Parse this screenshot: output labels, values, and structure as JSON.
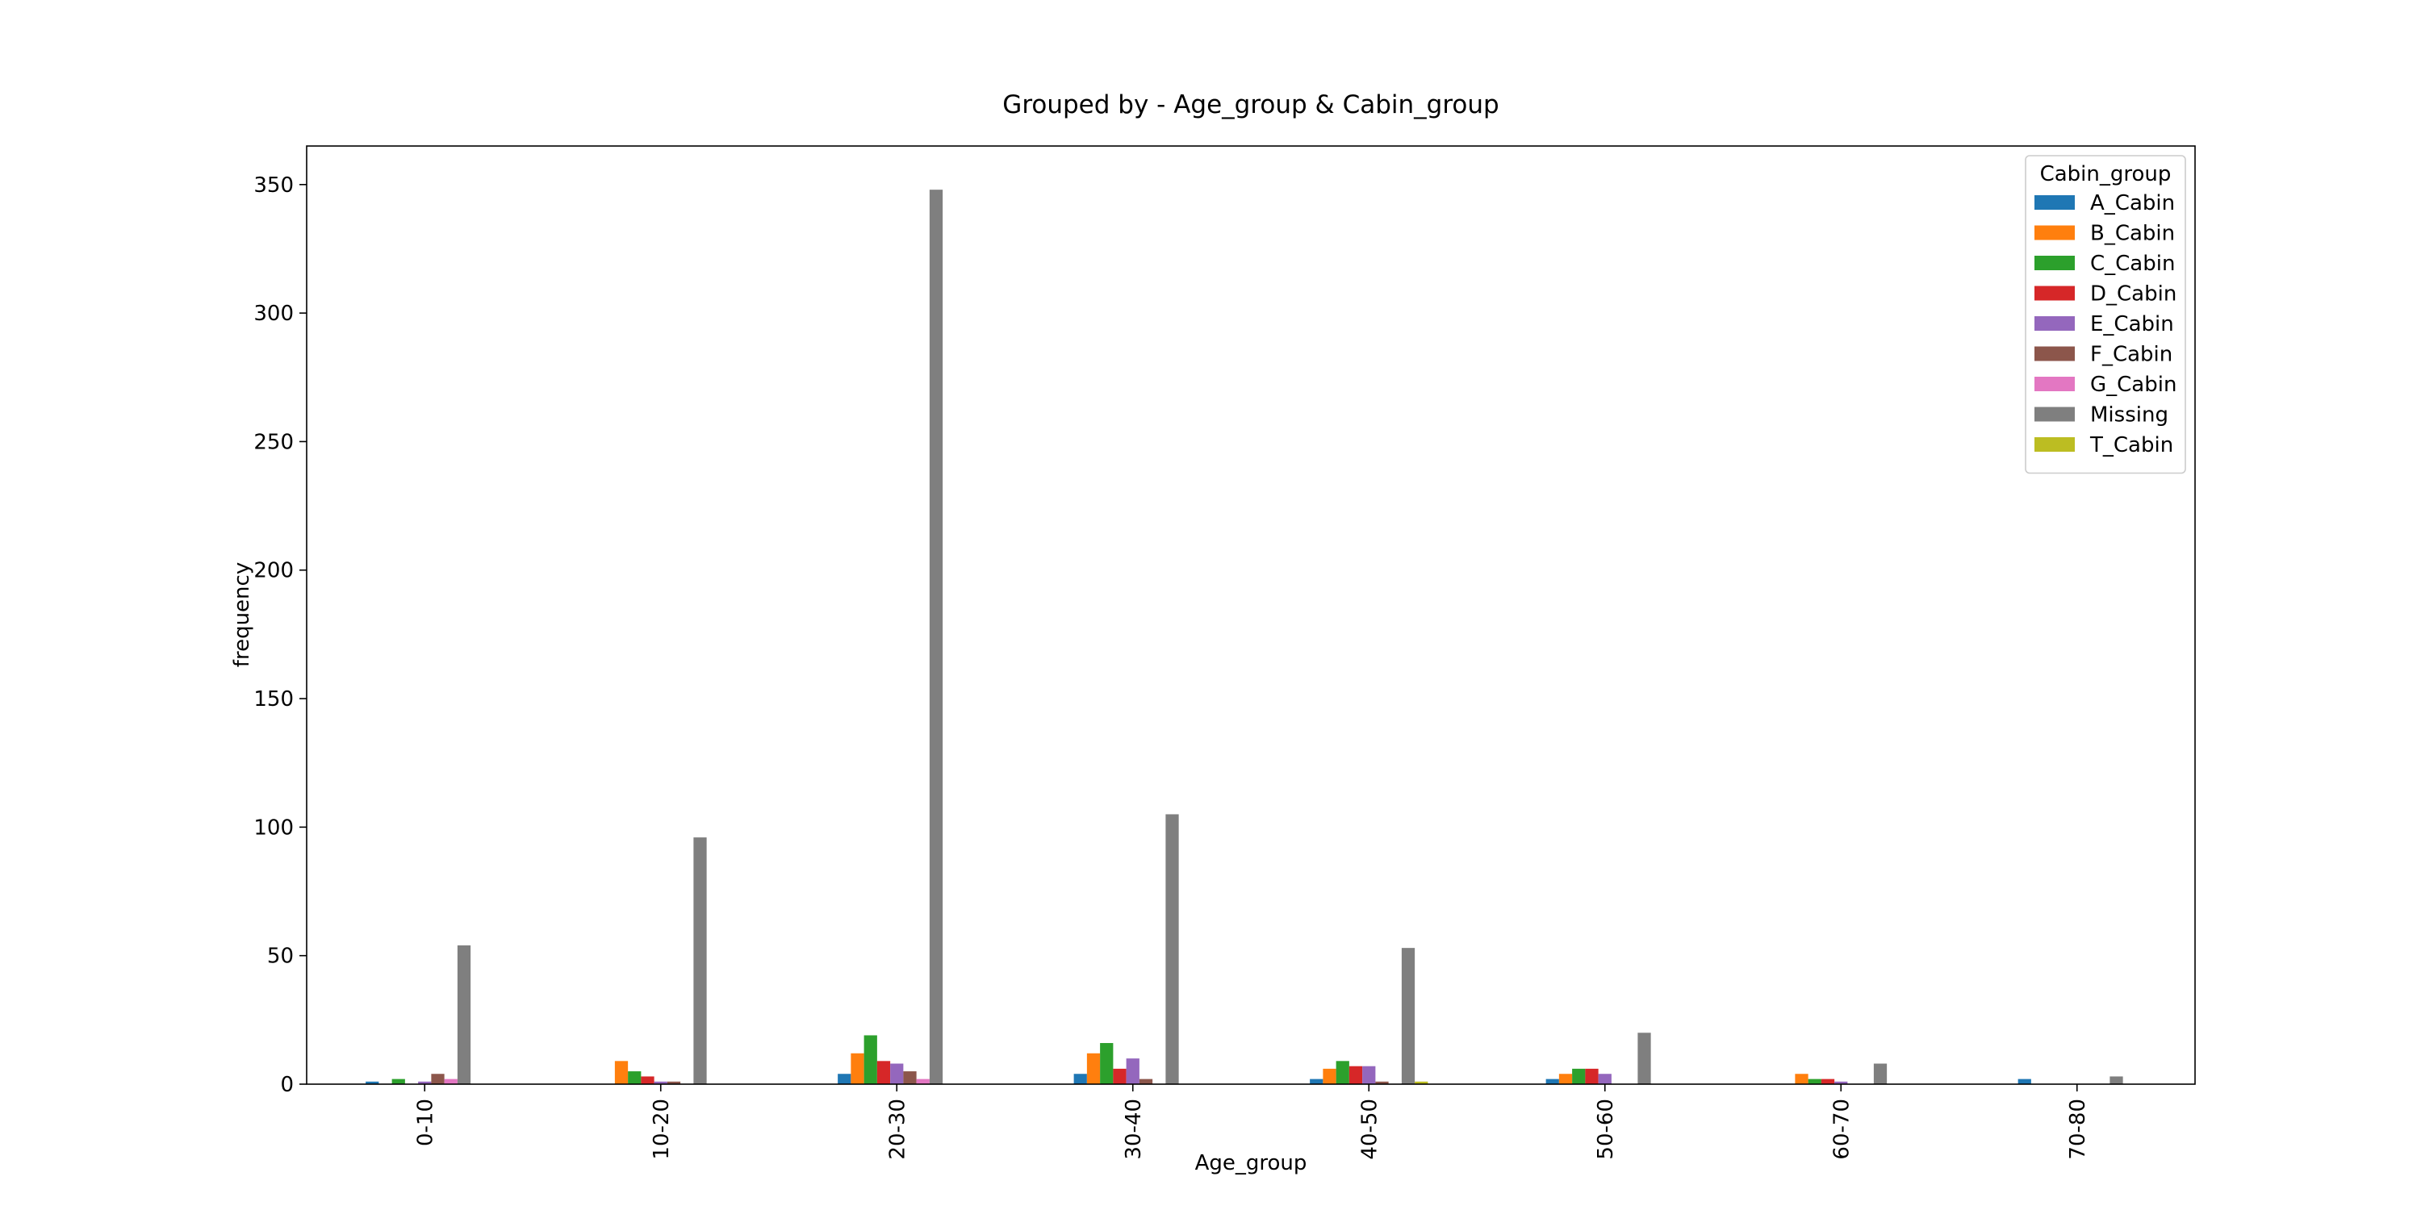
{
  "chart_data": {
    "type": "bar",
    "title": "Grouped by - Age_group & Cabin_group",
    "xlabel": "Age_group",
    "ylabel": "frequency",
    "ylim": [
      0,
      365
    ],
    "yticks": [
      0,
      50,
      100,
      150,
      200,
      250,
      300,
      350
    ],
    "categories": [
      "0-10",
      "10-20",
      "20-30",
      "30-40",
      "40-50",
      "50-60",
      "60-70",
      "70-80"
    ],
    "legend_title": "Cabin_group",
    "legend_position": "top-right",
    "grid": false,
    "series": [
      {
        "name": "A_Cabin",
        "color": "#1f77b4",
        "values": [
          1,
          0,
          4,
          4,
          2,
          2,
          0,
          2
        ]
      },
      {
        "name": "B_Cabin",
        "color": "#ff7f0e",
        "values": [
          0,
          9,
          12,
          12,
          6,
          4,
          4,
          0
        ]
      },
      {
        "name": "C_Cabin",
        "color": "#2ca02c",
        "values": [
          2,
          5,
          19,
          16,
          9,
          6,
          2,
          0
        ]
      },
      {
        "name": "D_Cabin",
        "color": "#d62728",
        "values": [
          0,
          3,
          9,
          6,
          7,
          6,
          2,
          0
        ]
      },
      {
        "name": "E_Cabin",
        "color": "#9467bd",
        "values": [
          1,
          1,
          8,
          10,
          7,
          4,
          1,
          0
        ]
      },
      {
        "name": "F_Cabin",
        "color": "#8c564b",
        "values": [
          4,
          1,
          5,
          2,
          1,
          0,
          0,
          0
        ]
      },
      {
        "name": "G_Cabin",
        "color": "#e377c2",
        "values": [
          2,
          0,
          2,
          0,
          0,
          0,
          0,
          0
        ]
      },
      {
        "name": "Missing",
        "color": "#7f7f7f",
        "values": [
          54,
          96,
          348,
          105,
          53,
          20,
          8,
          3
        ]
      },
      {
        "name": "T_Cabin",
        "color": "#bcbd22",
        "values": [
          0,
          0,
          0,
          0,
          1,
          0,
          0,
          0
        ]
      }
    ]
  }
}
